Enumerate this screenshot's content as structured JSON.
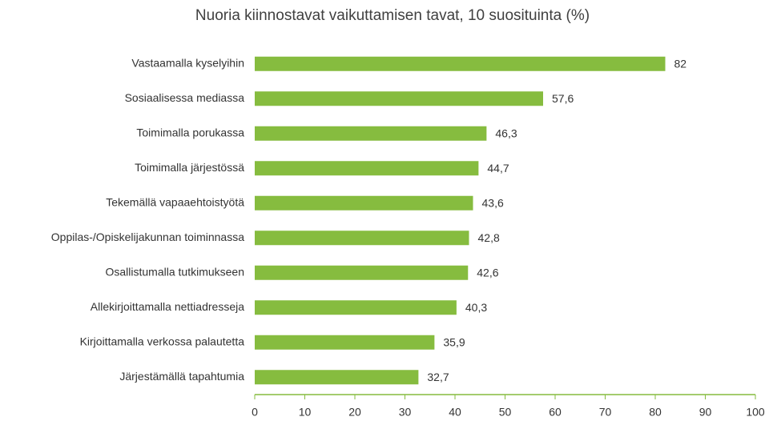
{
  "chart_data": {
    "type": "barh",
    "title": "Nuoria kiinnostavat vaikuttamisen tavat, 10 suosituinta (%)",
    "categories": [
      "Vastaamalla kyselyihin",
      "Sosiaalisessa mediassa",
      "Toimimalla porukassa",
      "Toimimalla järjestössä",
      "Tekemällä vapaaehtoistyötä",
      "Oppilas-/Opiskelijakunnan toiminnassa",
      "Osallistumalla tutkimukseen",
      "Allekirjoittamalla nettiadresseja",
      "Kirjoittamalla verkossa palautetta",
      "Järjestämällä tapahtumia"
    ],
    "values": [
      82,
      57.6,
      46.3,
      44.7,
      43.6,
      42.8,
      42.6,
      40.3,
      35.9,
      32.7
    ],
    "value_labels": [
      "82",
      "57,6",
      "46,3",
      "44,7",
      "43,6",
      "42,8",
      "42,6",
      "40,3",
      "35,9",
      "32,7"
    ],
    "color": "#86bc3f",
    "xlim": [
      0,
      100
    ],
    "xticks": [
      0,
      10,
      20,
      30,
      40,
      50,
      60,
      70,
      80,
      90,
      100
    ],
    "grid": false
  }
}
